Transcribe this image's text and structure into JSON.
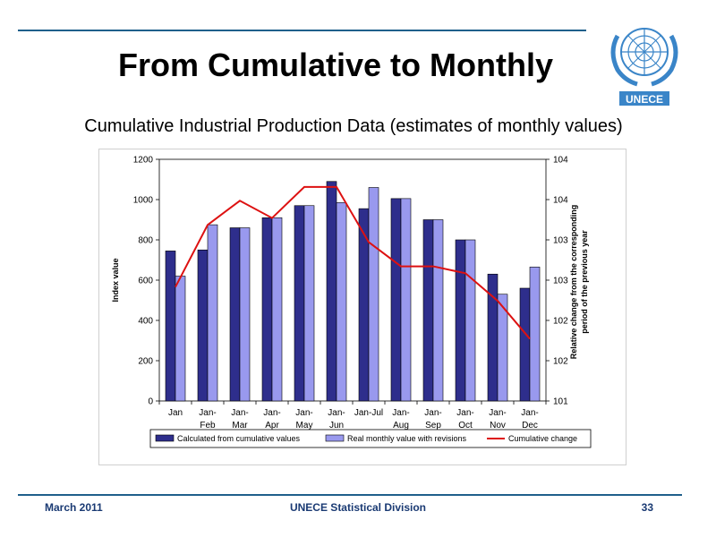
{
  "slide": {
    "title": "From Cumulative to Monthly",
    "subtitle": "Cumulative Industrial Production Data (estimates of monthly values)",
    "logo_text": "UNECE"
  },
  "footer": {
    "date": "March 2011",
    "organization": "UNECE Statistical Division",
    "page_number": "33"
  },
  "colors": {
    "rule": "#1f5f8b",
    "series_calculated": "#2e2e8c",
    "series_real": "#9999ee",
    "line_cumulative": "#dd1111",
    "logo_blue": "#3a85c8"
  },
  "chart_data": {
    "type": "bar",
    "categories": [
      [
        "Jan"
      ],
      [
        "Jan-",
        "Feb"
      ],
      [
        "Jan-",
        "Mar"
      ],
      [
        "Jan-",
        "Apr"
      ],
      [
        "Jan-",
        "May"
      ],
      [
        "Jan-",
        "Jun"
      ],
      [
        "Jan-Jul"
      ],
      [
        "Jan-",
        "Aug"
      ],
      [
        "Jan-",
        "Sep"
      ],
      [
        "Jan-",
        "Oct"
      ],
      [
        "Jan-",
        "Nov"
      ],
      [
        "Jan-",
        "Dec"
      ]
    ],
    "series": [
      {
        "name": "Calculated from cumulative values",
        "type": "bar",
        "axis": "left",
        "values": [
          745,
          750,
          860,
          910,
          970,
          1090,
          955,
          1005,
          900,
          800,
          630,
          560
        ]
      },
      {
        "name": "Real monthly value with revisions",
        "type": "bar",
        "axis": "left",
        "values": [
          620,
          875,
          860,
          910,
          970,
          985,
          1060,
          1005,
          900,
          800,
          530,
          665
        ]
      },
      {
        "name": "Cumulative change",
        "type": "line",
        "axis": "right",
        "values": [
          102.65,
          103.55,
          103.9,
          103.65,
          104.1,
          104.1,
          103.3,
          102.95,
          102.95,
          102.85,
          102.45,
          101.9
        ]
      }
    ],
    "left_axis": {
      "ylim": [
        0,
        1200
      ],
      "ticks": [
        "0",
        "200",
        "400",
        "600",
        "800",
        "1000",
        "1200"
      ],
      "label": "Index value"
    },
    "right_axis": {
      "ylim": [
        101,
        104.5
      ],
      "ticks": [
        "101",
        "102",
        "102",
        "103",
        "103",
        "104",
        "104"
      ],
      "label_lines": [
        "Relative change from the corresponding",
        "period of the previous year"
      ]
    },
    "legend": {
      "placement": "bottom"
    },
    "grid": false
  }
}
